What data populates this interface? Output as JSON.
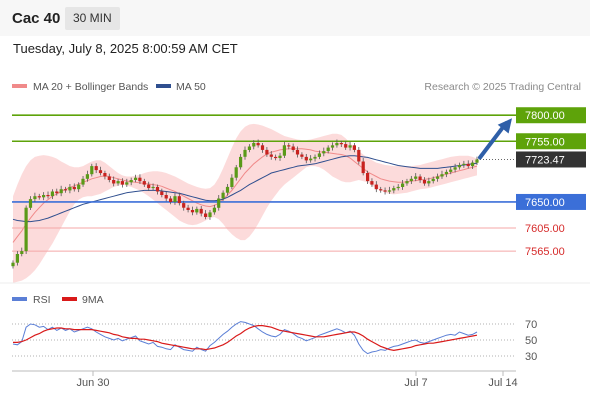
{
  "header": {
    "instrument": "Cac 40",
    "timeframe": "30 MIN",
    "datetime": "Tuesday, July 8, 2025 8:00:59 AM CET"
  },
  "legend": {
    "bollinger": "MA 20 + Bollinger Bands",
    "ma50": "MA 50",
    "copyright": "Research © 2025 Trading Central",
    "rsi": "RSI",
    "rsi_ma": "9MA"
  },
  "colors": {
    "resistance": "#5ea30a",
    "support": "#3b6fd8",
    "support_weak": "#f4a7a7",
    "support_weak_text": "#d62a2a",
    "current": "#333333",
    "bollinger_fill": "#fbd2d2",
    "ma20": "#f08a8a",
    "ma50": "#2f4f8f",
    "rsi": "#5b7fd6",
    "rsi_ma": "#d91a1a",
    "arrow": "#2f5fa8",
    "candle_up": "#5a9a18",
    "candle_down": "#c8221f"
  },
  "chart_data": [
    {
      "type": "candlestick",
      "title": "Cac 40",
      "ylim": [
        7515,
        7835
      ],
      "x_ticks": [
        "Jun 30",
        "Jul 7",
        "Jul 14"
      ],
      "levels": [
        {
          "label": "7800.00",
          "value": 7800,
          "kind": "resistance"
        },
        {
          "label": "7755.00",
          "value": 7755,
          "kind": "resistance"
        },
        {
          "label": "7723.47",
          "value": 7723.47,
          "kind": "current"
        },
        {
          "label": "7650.00",
          "value": 7650,
          "kind": "support"
        },
        {
          "label": "7605.00",
          "value": 7605,
          "kind": "support_weak"
        },
        {
          "label": "7565.00",
          "value": 7565,
          "kind": "support_weak"
        }
      ],
      "closes": [
        7545,
        7560,
        7565,
        7640,
        7655,
        7660,
        7658,
        7662,
        7660,
        7668,
        7665,
        7672,
        7670,
        7676,
        7672,
        7680,
        7690,
        7698,
        7712,
        7705,
        7700,
        7694,
        7688,
        7682,
        7686,
        7680,
        7684,
        7688,
        7692,
        7686,
        7680,
        7674,
        7676,
        7668,
        7662,
        7656,
        7650,
        7660,
        7648,
        7640,
        7636,
        7632,
        7638,
        7630,
        7624,
        7632,
        7640,
        7656,
        7666,
        7676,
        7692,
        7710,
        7728,
        7740,
        7746,
        7752,
        7748,
        7740,
        7732,
        7728,
        7726,
        7730,
        7748,
        7746,
        7740,
        7732,
        7728,
        7722,
        7725,
        7728,
        7734,
        7738,
        7744,
        7748,
        7752,
        7750,
        7744,
        7748,
        7740,
        7720,
        7700,
        7686,
        7680,
        7672,
        7670,
        7668,
        7670,
        7674,
        7676,
        7682,
        7686,
        7690,
        7694,
        7688,
        7682,
        7686,
        7690,
        7694,
        7698,
        7702,
        7706,
        7710,
        7714,
        7716,
        7712,
        7718,
        7723.47
      ],
      "ma20": [
        7580,
        7590,
        7600,
        7612,
        7622,
        7632,
        7640,
        7648,
        7654,
        7660,
        7664,
        7668,
        7672,
        7675,
        7678,
        7681,
        7684,
        7687,
        7690,
        7692,
        7694,
        7695,
        7694,
        7692,
        7690,
        7688,
        7686,
        7685,
        7684,
        7683,
        7682,
        7681,
        7680,
        7679,
        7677,
        7674,
        7671,
        7668,
        7664,
        7660,
        7656,
        7652,
        7648,
        7645,
        7643,
        7642,
        7644,
        7648,
        7654,
        7662,
        7670,
        7680,
        7690,
        7700,
        7708,
        7716,
        7722,
        7728,
        7733,
        7736,
        7738,
        7740,
        7741,
        7742,
        7742,
        7742,
        7742,
        7741,
        7740,
        7738,
        7737,
        7736,
        7735,
        7734,
        7733,
        7732,
        7730,
        7726,
        7720,
        7714,
        7708,
        7702,
        7698,
        7694,
        7690,
        7688,
        7686,
        7685,
        7684,
        7684,
        7685,
        7686,
        7687,
        7688,
        7689,
        7690,
        7692,
        7694,
        7696,
        7698,
        7700,
        7702,
        7704,
        7706,
        7708,
        7710,
        7712
      ],
      "upper_band": [
        7660,
        7680,
        7698,
        7712,
        7722,
        7728,
        7730,
        7731,
        7730,
        7728,
        7725,
        7720,
        7716,
        7712,
        7710,
        7710,
        7712,
        7716,
        7720,
        7722,
        7722,
        7718,
        7712,
        7706,
        7700,
        7696,
        7694,
        7694,
        7695,
        7697,
        7700,
        7702,
        7703,
        7703,
        7702,
        7700,
        7697,
        7694,
        7690,
        7686,
        7682,
        7679,
        7676,
        7674,
        7673,
        7674,
        7680,
        7692,
        7708,
        7726,
        7744,
        7760,
        7772,
        7780,
        7784,
        7785,
        7784,
        7782,
        7779,
        7776,
        7772,
        7768,
        7764,
        7762,
        7760,
        7758,
        7757,
        7757,
        7758,
        7760,
        7762,
        7764,
        7766,
        7768,
        7768,
        7766,
        7760,
        7752,
        7744,
        7738,
        7732,
        7726,
        7722,
        7718,
        7716,
        7714,
        7713,
        7712,
        7712,
        7712,
        7712,
        7712,
        7713,
        7714,
        7716,
        7718,
        7720,
        7722,
        7724,
        7726,
        7728,
        7729,
        7730,
        7730,
        7730,
        7728,
        7725
      ],
      "lower_band": [
        7510,
        7512,
        7514,
        7518,
        7524,
        7532,
        7542,
        7554,
        7566,
        7578,
        7592,
        7606,
        7620,
        7634,
        7646,
        7654,
        7658,
        7660,
        7660,
        7662,
        7664,
        7668,
        7672,
        7676,
        7678,
        7680,
        7678,
        7676,
        7673,
        7670,
        7665,
        7660,
        7654,
        7648,
        7642,
        7636,
        7630,
        7624,
        7618,
        7614,
        7611,
        7610,
        7611,
        7614,
        7618,
        7622,
        7624,
        7620,
        7612,
        7602,
        7594,
        7588,
        7584,
        7584,
        7590,
        7600,
        7612,
        7626,
        7640,
        7652,
        7662,
        7672,
        7680,
        7686,
        7692,
        7698,
        7704,
        7710,
        7712,
        7712,
        7710,
        7706,
        7700,
        7694,
        7690,
        7686,
        7684,
        7684,
        7686,
        7688,
        7686,
        7684,
        7678,
        7674,
        7670,
        7666,
        7664,
        7663,
        7664,
        7665,
        7666,
        7668,
        7670,
        7672,
        7673,
        7674,
        7676,
        7678,
        7680,
        7682,
        7684,
        7686,
        7688,
        7690,
        7692,
        7694,
        7696
      ],
      "ma50": [
        7620,
        7618,
        7617,
        7616,
        7616,
        7617,
        7618,
        7620,
        7622,
        7625,
        7628,
        7631,
        7634,
        7637,
        7640,
        7643,
        7646,
        7648,
        7650,
        7652,
        7654,
        7656,
        7658,
        7660,
        7662,
        7664,
        7666,
        7667,
        7668,
        7669,
        7670,
        7670,
        7670,
        7670,
        7669,
        7668,
        7667,
        7666,
        7665,
        7663,
        7661,
        7659,
        7657,
        7655,
        7653,
        7652,
        7652,
        7653,
        7655,
        7658,
        7662,
        7666,
        7670,
        7675,
        7680,
        7684,
        7688,
        7692,
        7696,
        7700,
        7702,
        7704,
        7706,
        7708,
        7710,
        7712,
        7713,
        7714,
        7715,
        7716,
        7718,
        7720,
        7722,
        7724,
        7726,
        7728,
        7729,
        7730,
        7730,
        7729,
        7728,
        7727,
        7725,
        7723,
        7721,
        7719,
        7717,
        7715,
        7713,
        7712,
        7711,
        7710,
        7709,
        7708,
        7708,
        7708,
        7708,
        7708,
        7709,
        7710,
        7711,
        7712,
        7713,
        7714,
        7715,
        7716,
        7717
      ]
    },
    {
      "type": "line",
      "title": "RSI",
      "ylim": [
        20,
        80
      ],
      "y_ticks": [
        70,
        50,
        30
      ],
      "reference_lines": [
        70,
        50,
        30
      ],
      "series": [
        {
          "name": "RSI",
          "values": [
            45,
            44,
            48,
            66,
            70,
            69,
            66,
            67,
            63,
            66,
            62,
            65,
            62,
            64,
            60,
            62,
            64,
            66,
            64,
            60,
            57,
            54,
            52,
            50,
            52,
            49,
            51,
            53,
            55,
            49,
            47,
            45,
            47,
            42,
            41,
            39,
            38,
            44,
            41,
            38,
            37,
            36,
            41,
            38,
            36,
            43,
            47,
            52,
            57,
            61,
            66,
            70,
            73,
            72,
            70,
            68,
            64,
            60,
            57,
            55,
            54,
            57,
            63,
            61,
            58,
            54,
            52,
            49,
            51,
            53,
            56,
            58,
            60,
            62,
            64,
            62,
            59,
            61,
            56,
            45,
            37,
            33,
            35,
            36,
            38,
            37,
            40,
            42,
            43,
            45,
            47,
            49,
            50,
            47,
            46,
            48,
            50,
            52,
            54,
            56,
            57,
            56,
            60,
            58,
            56,
            57,
            60
          ]
        },
        {
          "name": "9MA",
          "values": [
            47,
            47,
            48,
            50,
            53,
            56,
            58,
            61,
            63,
            64,
            65,
            65,
            64,
            64,
            63,
            63,
            63,
            63,
            63,
            62,
            61,
            60,
            59,
            57,
            56,
            54,
            53,
            52,
            52,
            51,
            51,
            50,
            49,
            48,
            46,
            45,
            44,
            43,
            42,
            41,
            40,
            39,
            39,
            39,
            38,
            39,
            40,
            42,
            44,
            47,
            51,
            55,
            58,
            62,
            65,
            67,
            68,
            68,
            67,
            66,
            64,
            62,
            61,
            60,
            59,
            58,
            57,
            56,
            55,
            54,
            54,
            54,
            55,
            56,
            57,
            58,
            59,
            60,
            60,
            58,
            55,
            51,
            48,
            45,
            42,
            40,
            38,
            37,
            38,
            39,
            40,
            41,
            43,
            44,
            45,
            46,
            46,
            47,
            48,
            49,
            50,
            51,
            52,
            53,
            54,
            55,
            56
          ]
        }
      ]
    }
  ]
}
